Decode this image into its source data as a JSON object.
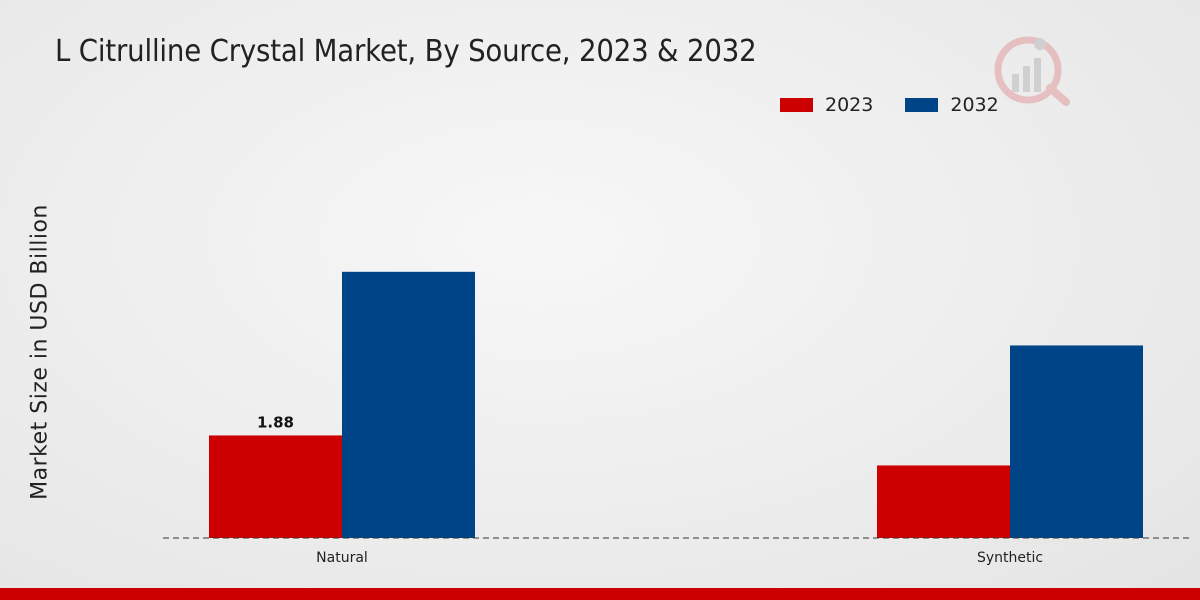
{
  "chart_data": {
    "type": "bar",
    "title": "L Citrulline Crystal Market, By Source, 2023 & 2032",
    "xlabel": "",
    "ylabel": "Market Size in USD Billion",
    "categories": [
      "Natural",
      "Synthetic"
    ],
    "series": [
      {
        "name": "2023",
        "color": "#cc0000",
        "values": [
          1.88,
          1.33
        ]
      },
      {
        "name": "2032",
        "color": "#004488",
        "values": [
          4.88,
          3.53
        ]
      }
    ],
    "data_labels": [
      {
        "series": 0,
        "index": 0,
        "text": "1.88"
      }
    ],
    "ylim": [
      0,
      5.5
    ],
    "legend": "top-right",
    "grid": false
  },
  "colors": {
    "accent_red": "#cc0000",
    "accent_blue": "#004488"
  }
}
